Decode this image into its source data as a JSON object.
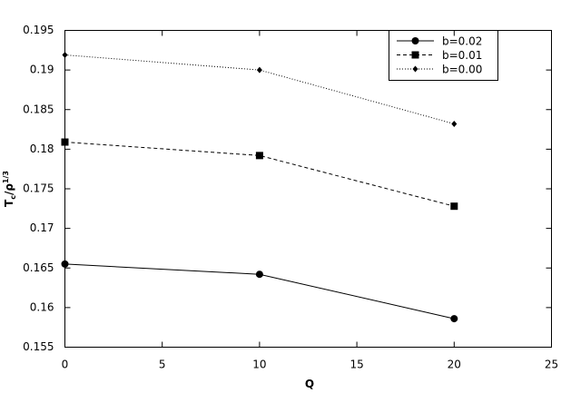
{
  "chart_data": {
    "type": "line",
    "x_label": "Q",
    "y_label": {
      "base": "T",
      "sub": "c",
      "mid": "/ρ",
      "sup": "1/3"
    },
    "x": [
      0,
      10,
      20
    ],
    "series": [
      {
        "name": "b=0.02",
        "color": "#000000",
        "marker": "circle",
        "dash": "solid",
        "values": [
          0.1655,
          0.1642,
          0.1586
        ]
      },
      {
        "name": "b=0.01",
        "color": "#000000",
        "marker": "square",
        "dash": "dashed",
        "values": [
          0.1809,
          0.1792,
          0.1728
        ]
      },
      {
        "name": "b=0.00",
        "color": "#000000",
        "marker": "diamond",
        "dash": "dotted",
        "values": [
          0.1919,
          0.19,
          0.1832
        ]
      }
    ],
    "xlim": [
      0,
      25
    ],
    "xticks": [
      0,
      5,
      10,
      15,
      20,
      25
    ],
    "ylim": [
      0.155,
      0.195
    ],
    "yticks": [
      0.155,
      0.16,
      0.165,
      0.17,
      0.175,
      0.18,
      0.185,
      0.19,
      0.195
    ],
    "legend": "upper right",
    "grid": false
  }
}
